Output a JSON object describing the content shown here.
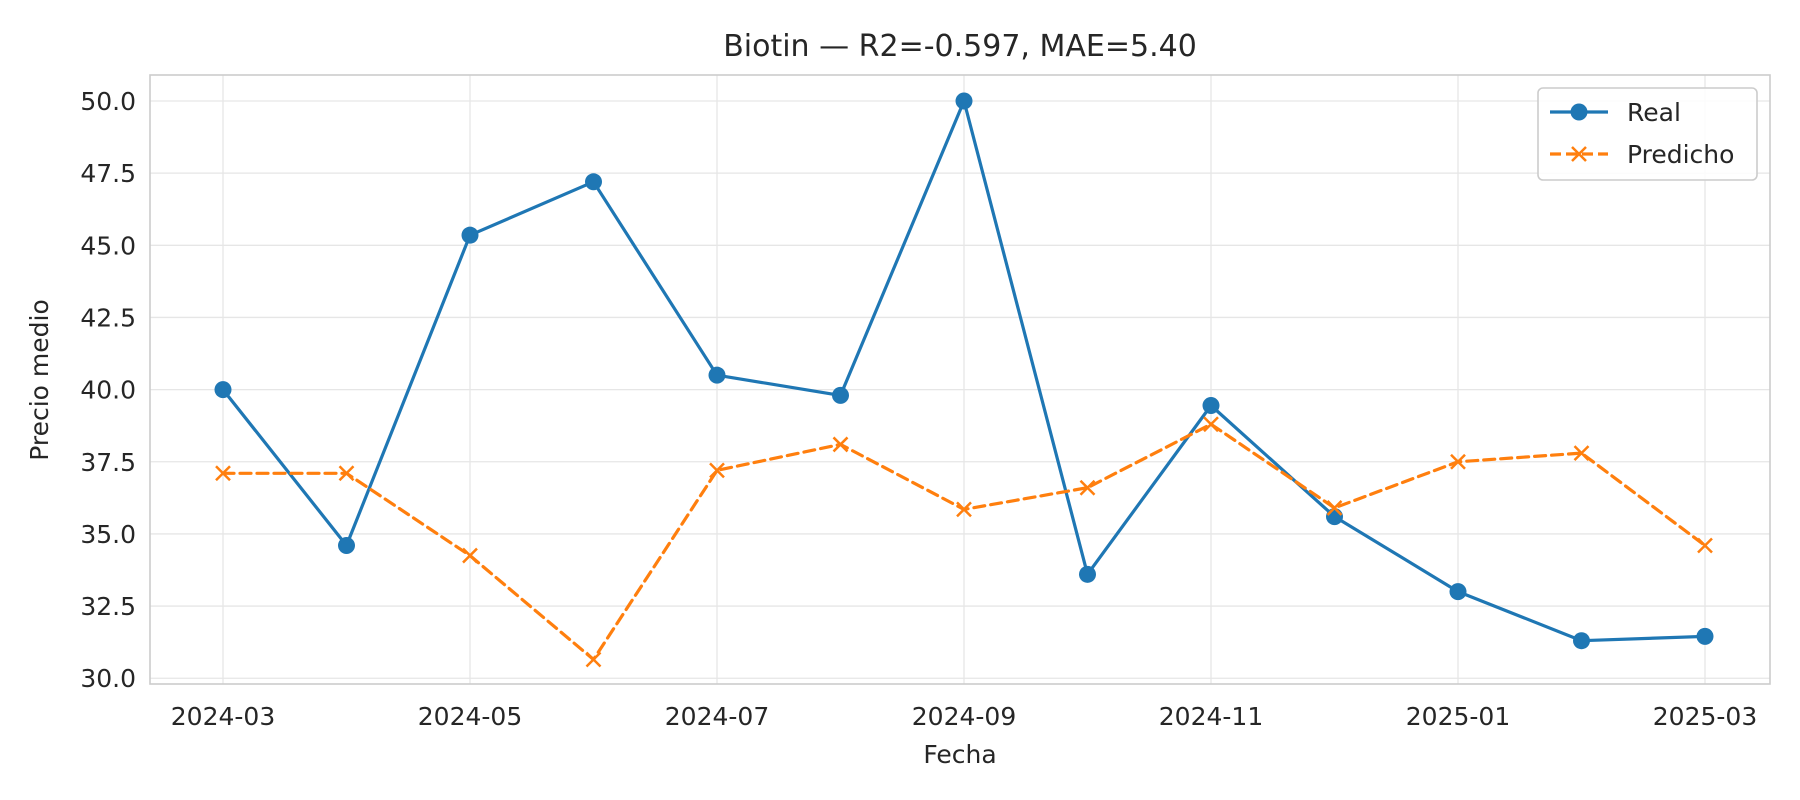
{
  "chart_data": {
    "type": "line",
    "title": "Biotin — R2=-0.597, MAE=5.40",
    "xlabel": "Fecha",
    "ylabel": "Precio medio",
    "x": [
      "2024-03",
      "2024-04",
      "2024-05",
      "2024-06",
      "2024-07",
      "2024-08",
      "2024-09",
      "2024-10",
      "2024-11",
      "2024-12",
      "2025-01",
      "2025-02",
      "2025-03"
    ],
    "xticks": [
      "2024-03",
      "2024-05",
      "2024-07",
      "2024-09",
      "2024-11",
      "2025-01",
      "2025-03"
    ],
    "ylim": [
      29.8,
      50.9
    ],
    "yticks": [
      "30.0",
      "32.5",
      "35.0",
      "37.5",
      "40.0",
      "42.5",
      "45.0",
      "47.5",
      "50.0"
    ],
    "grid": true,
    "legend_position": "top-right",
    "series": [
      {
        "name": "Real",
        "color": "#1f77b4",
        "marker": "circle",
        "line_style": "solid",
        "values": [
          40.0,
          34.6,
          45.35,
          47.2,
          40.5,
          39.8,
          50.0,
          33.6,
          39.45,
          35.6,
          33.0,
          31.3,
          31.45
        ]
      },
      {
        "name": "Predicho",
        "color": "#ff7f0e",
        "marker": "x",
        "line_style": "dashed",
        "values": [
          37.1,
          37.1,
          34.25,
          30.65,
          37.2,
          38.1,
          35.85,
          36.6,
          38.8,
          35.9,
          37.5,
          37.8,
          34.6
        ]
      }
    ]
  }
}
